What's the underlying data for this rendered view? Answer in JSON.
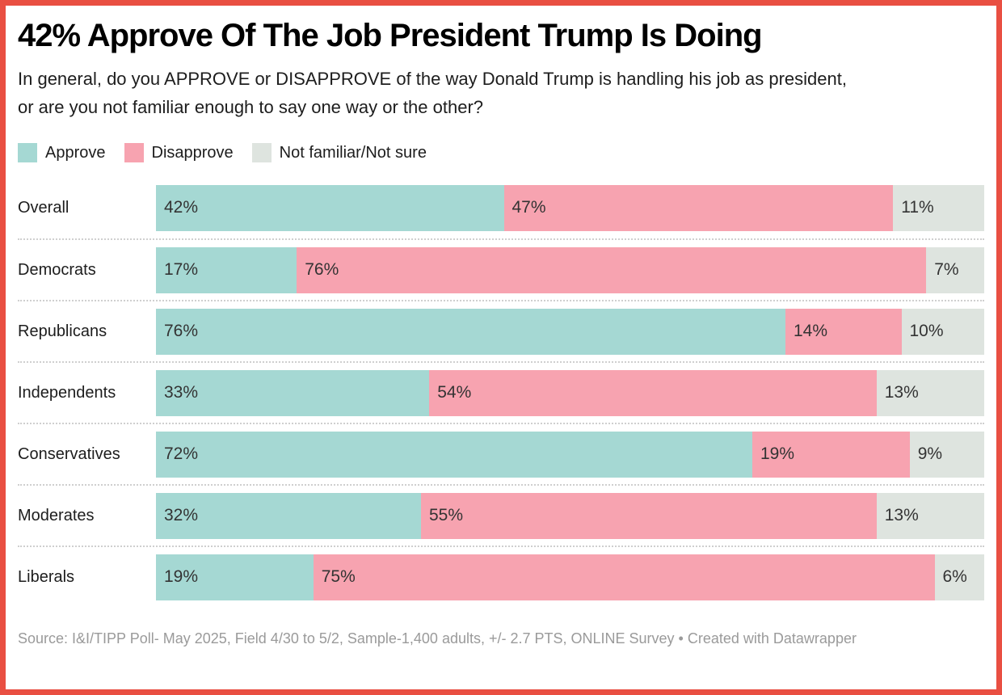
{
  "colors": {
    "frame_border": "#E94F42",
    "approve": "#A5D8D3",
    "disapprove": "#F7A3B0",
    "not_familiar": "#DEE4DF",
    "separator": "#CFCFCF",
    "value_label": "#333333",
    "source_text": "#9A9A9A"
  },
  "chart_data": {
    "type": "bar",
    "orientation": "horizontal",
    "stacked": true,
    "title": "42% Approve Of The Job President Trump Is Doing",
    "subtitle": "In general, do you APPROVE or DISAPPROVE of the way Donald Trump is handling his job as president, or are you not familiar enough to say one way or the other?",
    "legend_position": "top",
    "grid": false,
    "xlim": [
      0,
      100
    ],
    "value_suffix": "%",
    "categories": [
      "Overall",
      "Democrats",
      "Republicans",
      "Independents",
      "Conservatives",
      "Moderates",
      "Liberals"
    ],
    "series": [
      {
        "name": "Approve",
        "color": "#A5D8D3",
        "values": [
          42,
          17,
          76,
          33,
          72,
          32,
          19
        ]
      },
      {
        "name": "Disapprove",
        "color": "#F7A3B0",
        "values": [
          47,
          76,
          14,
          54,
          19,
          55,
          75
        ]
      },
      {
        "name": "Not familiar/Not sure",
        "color": "#DEE4DF",
        "values": [
          11,
          7,
          10,
          13,
          9,
          13,
          6
        ]
      }
    ],
    "source": "Source: I&I/TIPP Poll- May 2025, Field 4/30 to 5/2, Sample-1,400 adults, +/- 2.7 PTS, ONLINE Survey • Created with Datawrapper"
  }
}
